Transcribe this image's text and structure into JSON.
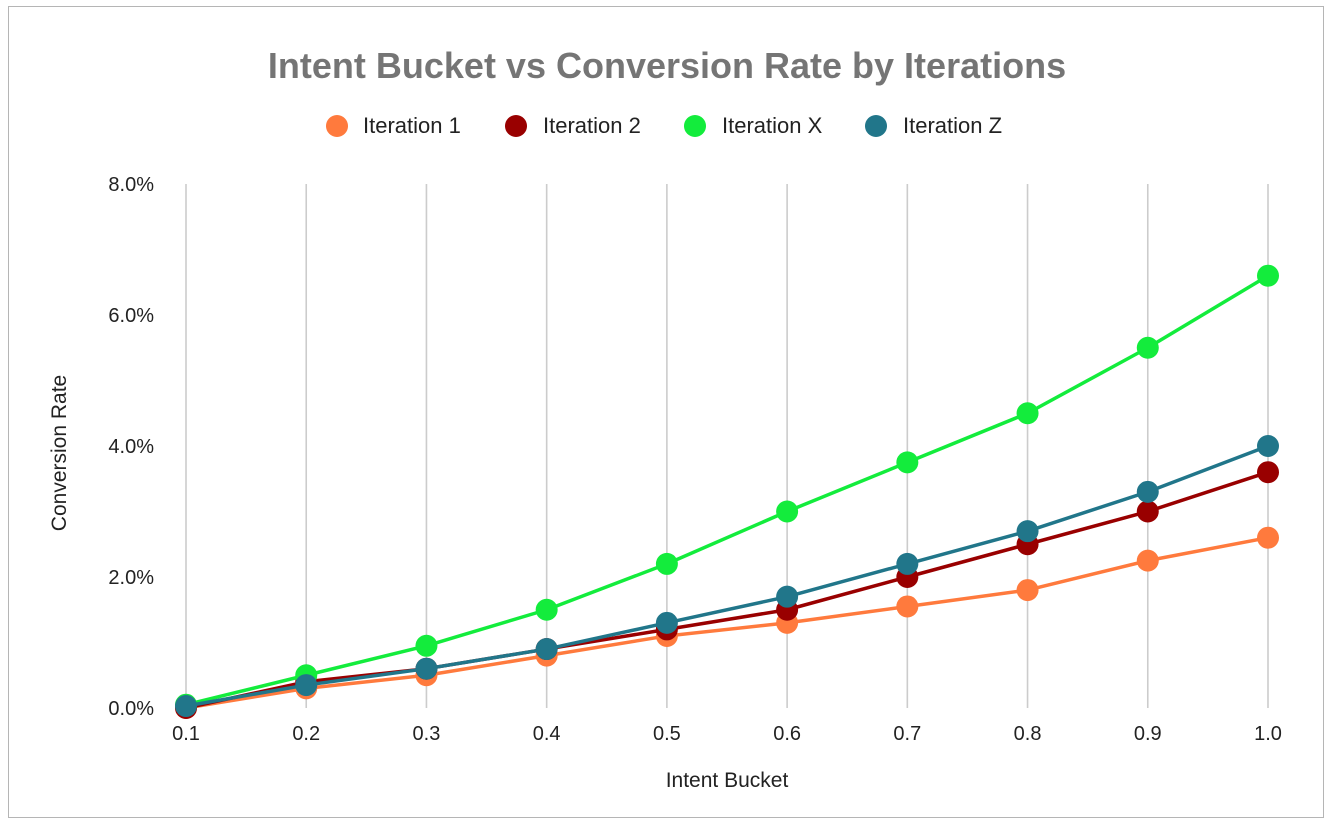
{
  "chart_data": {
    "type": "line",
    "title": "Intent Bucket vs Conversion Rate by Iterations",
    "xlabel": "Intent Bucket",
    "ylabel": "Conversion Rate",
    "x": [
      "0.1",
      "0.2",
      "0.3",
      "0.4",
      "0.5",
      "0.6",
      "0.7",
      "0.8",
      "0.9",
      "1.0"
    ],
    "ylim": [
      0,
      0.08
    ],
    "y_ticks": [
      "0.0%",
      "2.0%",
      "4.0%",
      "6.0%",
      "8.0%"
    ],
    "y_tick_values": [
      0,
      0.02,
      0.04,
      0.06,
      0.08
    ],
    "grid": "vertical",
    "legend_position": "top",
    "series": [
      {
        "name": "Iteration 1",
        "color": "#ff7a3d",
        "values": [
          0.0,
          0.003,
          0.005,
          0.008,
          0.011,
          0.013,
          0.0155,
          0.018,
          0.0225,
          0.026
        ]
      },
      {
        "name": "Iteration 2",
        "color": "#990000",
        "values": [
          0.0,
          0.004,
          0.006,
          0.009,
          0.012,
          0.015,
          0.02,
          0.025,
          0.03,
          0.036
        ]
      },
      {
        "name": "Iteration X",
        "color": "#13ec3c",
        "values": [
          0.0005,
          0.005,
          0.0095,
          0.015,
          0.022,
          0.03,
          0.0375,
          0.045,
          0.055,
          0.066
        ]
      },
      {
        "name": "Iteration Z",
        "color": "#21768a",
        "values": [
          0.0003,
          0.0035,
          0.006,
          0.009,
          0.013,
          0.017,
          0.022,
          0.027,
          0.033,
          0.04
        ]
      }
    ]
  }
}
